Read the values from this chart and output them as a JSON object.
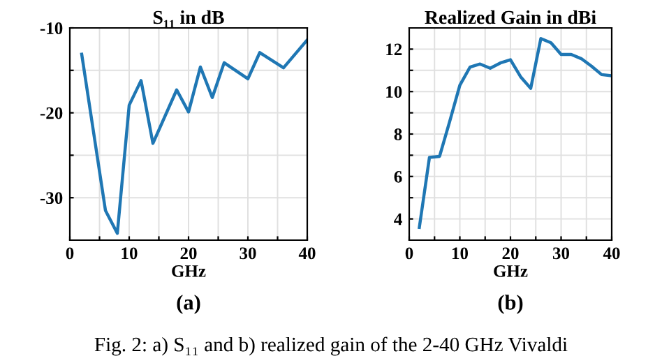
{
  "chart_data": [
    {
      "type": "line",
      "title": "S₁₁ in dB",
      "xlabel": "GHz",
      "annotations": [
        "(a)",
        "Fig. 2: a) S₁₁ and b) realized gain of the 2-40 GHz Vivaldi"
      ],
      "x": [
        2,
        6,
        8,
        10,
        12,
        14,
        18,
        20,
        22,
        24,
        26,
        30,
        32,
        36,
        40
      ],
      "series": [
        {
          "color": "#1f77b4",
          "values": [
            -13.1,
            -31.5,
            -34.2,
            -19.1,
            -16.2,
            -23.6,
            -17.3,
            -19.9,
            -14.6,
            -18.2,
            -14.1,
            -16.0,
            -12.9,
            -14.7,
            -11.4
          ]
        }
      ],
      "xlim": [
        0,
        40
      ],
      "xticks": [
        0,
        {
          "value": 5,
          "label": null
        },
        10,
        {
          "value": 15,
          "label": null
        },
        20,
        {
          "value": 25,
          "label": null
        },
        30,
        {
          "value": 35,
          "label": null
        },
        40
      ],
      "ylim": [
        -35,
        -10
      ],
      "yticks": [
        -10,
        {
          "value": -15,
          "label": null
        },
        -20,
        {
          "value": -25,
          "label": null
        },
        -30
      ],
      "grid": true
    },
    {
      "type": "line",
      "title": "Realized Gain in dBi",
      "xlabel": "GHz",
      "annotations": [
        "(b)"
      ],
      "x": [
        2,
        4,
        6,
        8,
        10,
        12,
        14,
        16,
        18,
        20,
        22,
        24,
        26,
        28,
        30,
        32,
        34,
        36,
        38,
        40
      ],
      "series": [
        {
          "color": "#1f77b4",
          "values": [
            3.6,
            6.9,
            6.95,
            8.6,
            10.3,
            11.15,
            11.3,
            11.1,
            11.35,
            11.5,
            10.7,
            10.15,
            12.5,
            12.3,
            11.75,
            11.75,
            11.55,
            11.2,
            10.8,
            10.75
          ]
        }
      ],
      "xlim": [
        0,
        40
      ],
      "xticks": [
        0,
        {
          "value": 5,
          "label": null
        },
        10,
        {
          "value": 15,
          "label": null
        },
        20,
        {
          "value": 25,
          "label": null
        },
        30,
        {
          "value": 35,
          "label": null
        },
        40
      ],
      "ylim": [
        3,
        13
      ],
      "yticks": [
        4,
        {
          "value": 5,
          "label": null
        },
        6,
        {
          "value": 7,
          "label": null
        },
        8,
        {
          "value": 9,
          "label": null
        },
        10,
        {
          "value": 11,
          "label": null
        },
        12
      ],
      "grid": true
    }
  ]
}
